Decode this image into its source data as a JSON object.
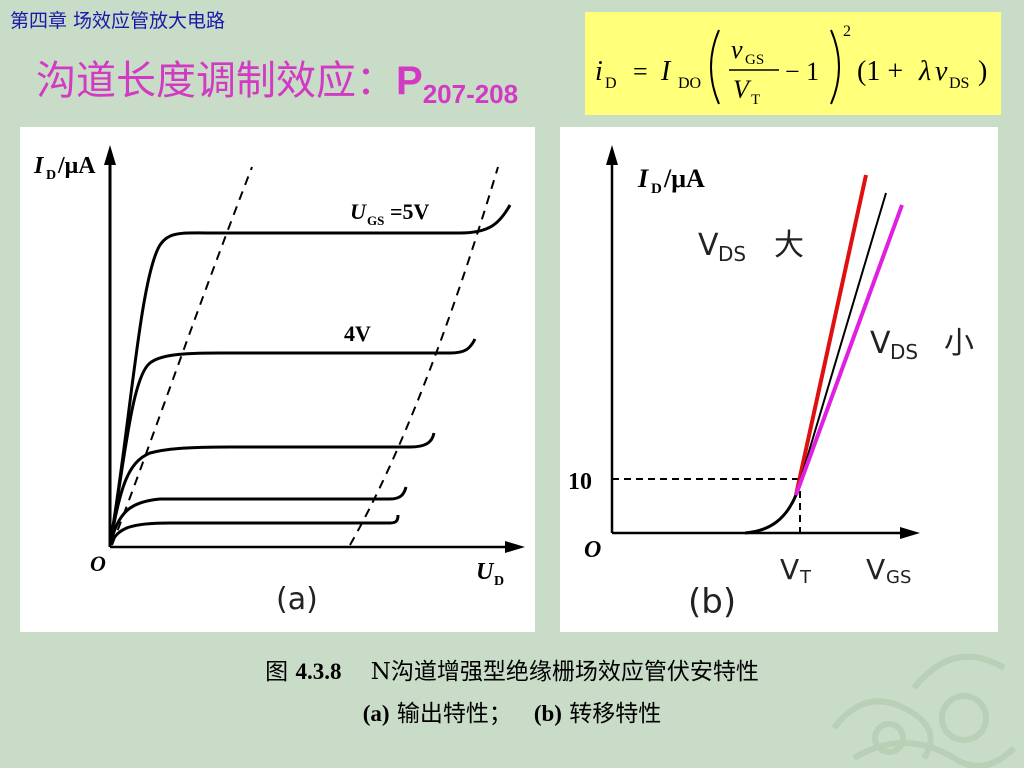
{
  "header": {
    "chapter": "第四章  场效应管放大电路",
    "title_text": "沟道长度调制效应：",
    "title_ref": "P",
    "title_pages": "207-208"
  },
  "formula": {
    "lhs_var": "i",
    "lhs_sub": "D",
    "eq": "=",
    "coef": "I",
    "coef_sub": "DO",
    "num_var": "v",
    "num_sub": "GS",
    "den_var": "V",
    "den_sub": "T",
    "minus_one": "− 1",
    "exponent": "2",
    "factor_open": "(1 +",
    "lambda": "λ",
    "factor_var": "v",
    "factor_sub": "DS",
    "factor_close": ")"
  },
  "panel_a": {
    "y_axis_label": "I",
    "y_axis_sub": "D",
    "y_axis_unit": "/μA",
    "x_axis_label": "U",
    "x_axis_sub": "D",
    "origin": "O",
    "curve_top_label_var": "U",
    "curve_top_label_sub": "GS",
    "curve_top_label_val": "=5V",
    "curve_2_label": "4V",
    "panel_label": "(a)"
  },
  "panel_b": {
    "y_axis_label": "I",
    "y_axis_sub": "D",
    "y_axis_unit": "/μA",
    "origin": "O",
    "tick_10": "10",
    "vt_main": "V",
    "vt_sub": "T",
    "vgs_main": "V",
    "vgs_sub": "GS",
    "vds_large_main": "V",
    "vds_large_sub": "DS",
    "vds_large_word": "大",
    "vds_small_main": "V",
    "vds_small_sub": "DS",
    "vds_small_word": "小",
    "panel_label": "(b)",
    "line_colors": {
      "large": "#e01010",
      "nominal": "#000000",
      "small": "#e020e0"
    }
  },
  "caption": {
    "fig_word": "图",
    "fig_num": "4.3.8",
    "fig_title": "N沟道增强型绝缘栅场效应管伏安特性",
    "part_a_tag": "(a)",
    "part_a_text": "输出特性；",
    "part_b_tag": "(b)",
    "part_b_text": "转移特性"
  }
}
